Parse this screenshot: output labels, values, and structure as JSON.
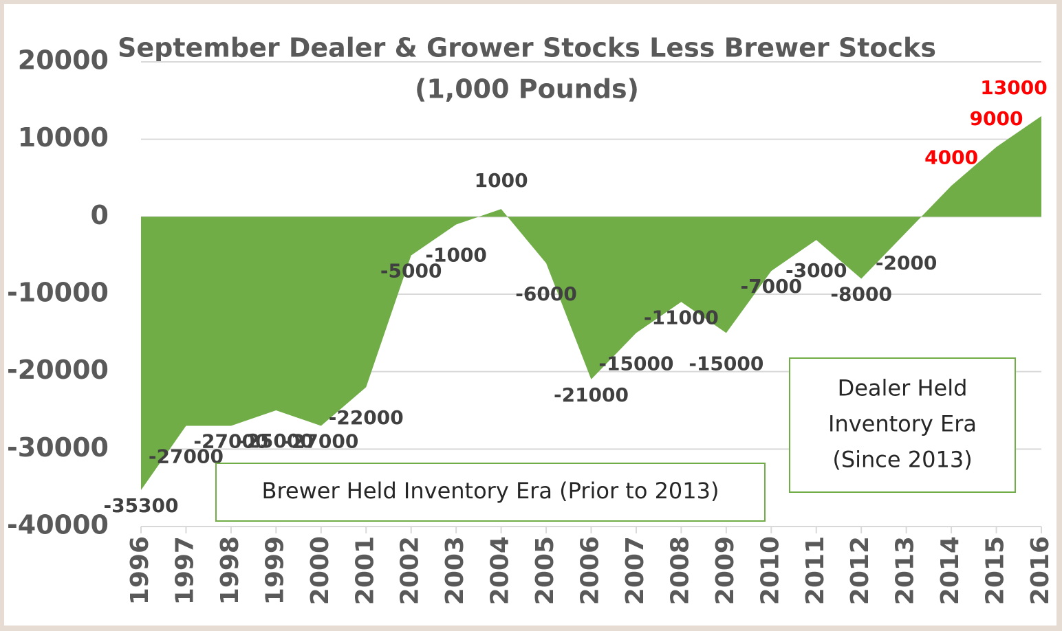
{
  "chart_data": {
    "type": "area",
    "title": "September Dealer & Grower Stocks Less Brewer Stocks",
    "subtitle": "(1,000 Pounds)",
    "categories": [
      "1996",
      "1997",
      "1998",
      "1999",
      "2000",
      "2001",
      "2002",
      "2003",
      "2004",
      "2005",
      "2006",
      "2007",
      "2008",
      "2009",
      "2010",
      "2011",
      "2012",
      "2013",
      "2014",
      "2015",
      "2016"
    ],
    "values": [
      -35300,
      -27000,
      -27000,
      -25000,
      -27000,
      -22000,
      -5000,
      -1000,
      1000,
      -6000,
      -21000,
      -15000,
      -11000,
      -15000,
      -7000,
      -3000,
      -8000,
      -2000,
      4000,
      9000,
      13000
    ],
    "color": "#70ad47",
    "label_colors": [
      "#404040",
      "#404040",
      "#404040",
      "#404040",
      "#404040",
      "#404040",
      "#404040",
      "#404040",
      "#404040",
      "#404040",
      "#404040",
      "#404040",
      "#404040",
      "#404040",
      "#404040",
      "#404040",
      "#404040",
      "#404040",
      "#ff0000",
      "#ff0000",
      "#ff0000"
    ],
    "ylim": [
      -40000,
      20000
    ],
    "yticks": [
      -40000,
      -30000,
      -20000,
      -10000,
      0,
      10000,
      20000
    ],
    "grid": true,
    "annotations": [
      {
        "lines": [
          "Brewer Held Inventory Era (Prior to 2013)"
        ]
      },
      {
        "lines": [
          "Dealer Held",
          "Inventory Era",
          "(Since 2013)"
        ]
      }
    ]
  }
}
